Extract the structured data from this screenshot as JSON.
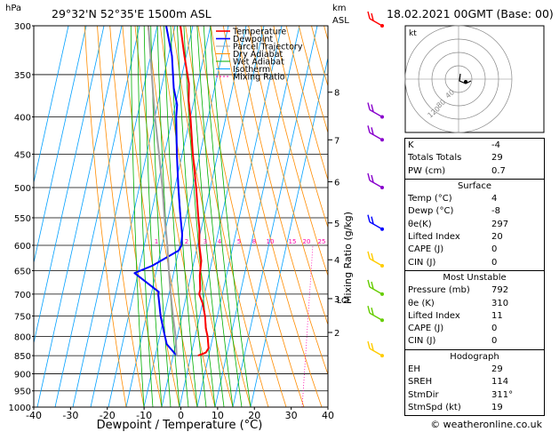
{
  "header": {
    "hpa_label": "hPa",
    "location": "29°32'N  52°35'E  1500m  ASL",
    "km_label": "km",
    "asl_label": "ASL",
    "datetime": "18.02.2021  00GMT  (Base: 00)"
  },
  "chart_data": {
    "type": "line",
    "xlabel": "Dewpoint / Temperature (°C)",
    "ylabel": "hPa",
    "xlim": [
      -40,
      40
    ],
    "ylim": [
      1000,
      300
    ],
    "x_ticks": [
      -40,
      -30,
      -20,
      -10,
      0,
      10,
      20,
      30,
      40
    ],
    "pressure_levels": [
      300,
      350,
      400,
      450,
      500,
      550,
      600,
      650,
      700,
      750,
      800,
      850,
      900,
      950,
      1000
    ],
    "legend": [
      "Temperature",
      "Dewpoint",
      "Parcel Trajectory",
      "Dry Adiabat",
      "Wet Adiabat",
      "Isotherm",
      "Mixing Ratio"
    ],
    "series": [
      {
        "name": "Temperature",
        "color": "#ff0000",
        "p": [
          850,
          842,
          830,
          800,
          780,
          750,
          720,
          700,
          690,
          660,
          630,
          600,
          570,
          550,
          500,
          450,
          400,
          380,
          360,
          330,
          300
        ],
        "t": [
          4,
          8,
          9,
          7,
          5,
          3,
          0,
          -3,
          -3,
          -5,
          -6,
          -9,
          -11,
          -13,
          -18,
          -24,
          -30,
          -33,
          -35,
          -41,
          -47
        ]
      },
      {
        "name": "Dewpoint",
        "color": "#0000ff",
        "p": [
          850,
          820,
          790,
          750,
          700,
          695,
          655,
          640,
          610,
          600,
          580,
          560,
          540,
          500,
          450,
          400,
          385,
          365,
          330,
          300
        ],
        "t": [
          -8,
          -15,
          -18,
          -22,
          -26,
          -26,
          -42,
          -33,
          -20,
          -19,
          -20,
          -22,
          -24,
          -28,
          -33,
          -38,
          -39,
          -43,
          -48,
          -55
        ]
      },
      {
        "name": "Parcel Trajectory",
        "color": "#a0a0a0",
        "p": [
          850,
          800,
          750,
          700,
          650,
          600,
          550,
          500,
          450,
          400,
          350,
          300
        ],
        "t": [
          -8,
          -11,
          -15,
          -19,
          -23,
          -27,
          -32,
          -37,
          -43,
          -50,
          -57,
          -65
        ]
      }
    ],
    "mixing_ratio_labels": [
      "1",
      "2",
      "3",
      "4",
      "5",
      "8",
      "10",
      "15",
      "20",
      "25"
    ],
    "mixing_ratio_axis_label": "Mixing Ratio (g/kg)",
    "km_ticks": [
      {
        "p": 370,
        "label": "8"
      },
      {
        "p": 430,
        "label": "7"
      },
      {
        "p": 491,
        "label": "6"
      },
      {
        "p": 559,
        "label": "5"
      },
      {
        "p": 628,
        "label": "4"
      },
      {
        "p": 710,
        "label": "3"
      },
      {
        "p": 790,
        "label": "2"
      }
    ],
    "lcl_label": "LCL",
    "lcl_pressure": 712,
    "hodograph": {
      "label": "kt",
      "ring_labels": [
        "40",
        "80",
        "120"
      ]
    },
    "wind_barbs": [
      {
        "p": 300,
        "color": "#ff0000"
      },
      {
        "p": 400,
        "color": "#8800cc"
      },
      {
        "p": 430,
        "color": "#8800cc"
      },
      {
        "p": 500,
        "color": "#8800cc"
      },
      {
        "p": 570,
        "color": "#0000ff"
      },
      {
        "p": 640,
        "color": "#ffcc00"
      },
      {
        "p": 700,
        "color": "#66cc00"
      },
      {
        "p": 760,
        "color": "#66cc00"
      },
      {
        "p": 850,
        "color": "#ffcc00"
      }
    ]
  },
  "indices": {
    "basic": [
      {
        "label": "K",
        "value": "-4"
      },
      {
        "label": "Totals Totals",
        "value": "29"
      },
      {
        "label": "PW (cm)",
        "value": "0.7"
      }
    ],
    "surface": {
      "title": "Surface",
      "rows": [
        {
          "label": "Temp (°C)",
          "value": "4"
        },
        {
          "label": "Dewp (°C)",
          "value": "-8"
        },
        {
          "label": "θe(K)",
          "value": "297"
        },
        {
          "label": "Lifted Index",
          "value": "20"
        },
        {
          "label": "CAPE (J)",
          "value": "0"
        },
        {
          "label": "CIN (J)",
          "value": "0"
        }
      ]
    },
    "most_unstable": {
      "title": "Most Unstable",
      "rows": [
        {
          "label": "Pressure (mb)",
          "value": "792"
        },
        {
          "label": "θe (K)",
          "value": "310"
        },
        {
          "label": "Lifted Index",
          "value": "11"
        },
        {
          "label": "CAPE (J)",
          "value": "0"
        },
        {
          "label": "CIN (J)",
          "value": "0"
        }
      ]
    },
    "hodograph": {
      "title": "Hodograph",
      "rows": [
        {
          "label": "EH",
          "value": "29"
        },
        {
          "label": "SREH",
          "value": "114"
        },
        {
          "label": "StmDir",
          "value": "311°"
        },
        {
          "label": "StmSpd (kt)",
          "value": "19"
        }
      ]
    }
  },
  "footer": {
    "copyright": "© weatheronline.co.uk"
  }
}
